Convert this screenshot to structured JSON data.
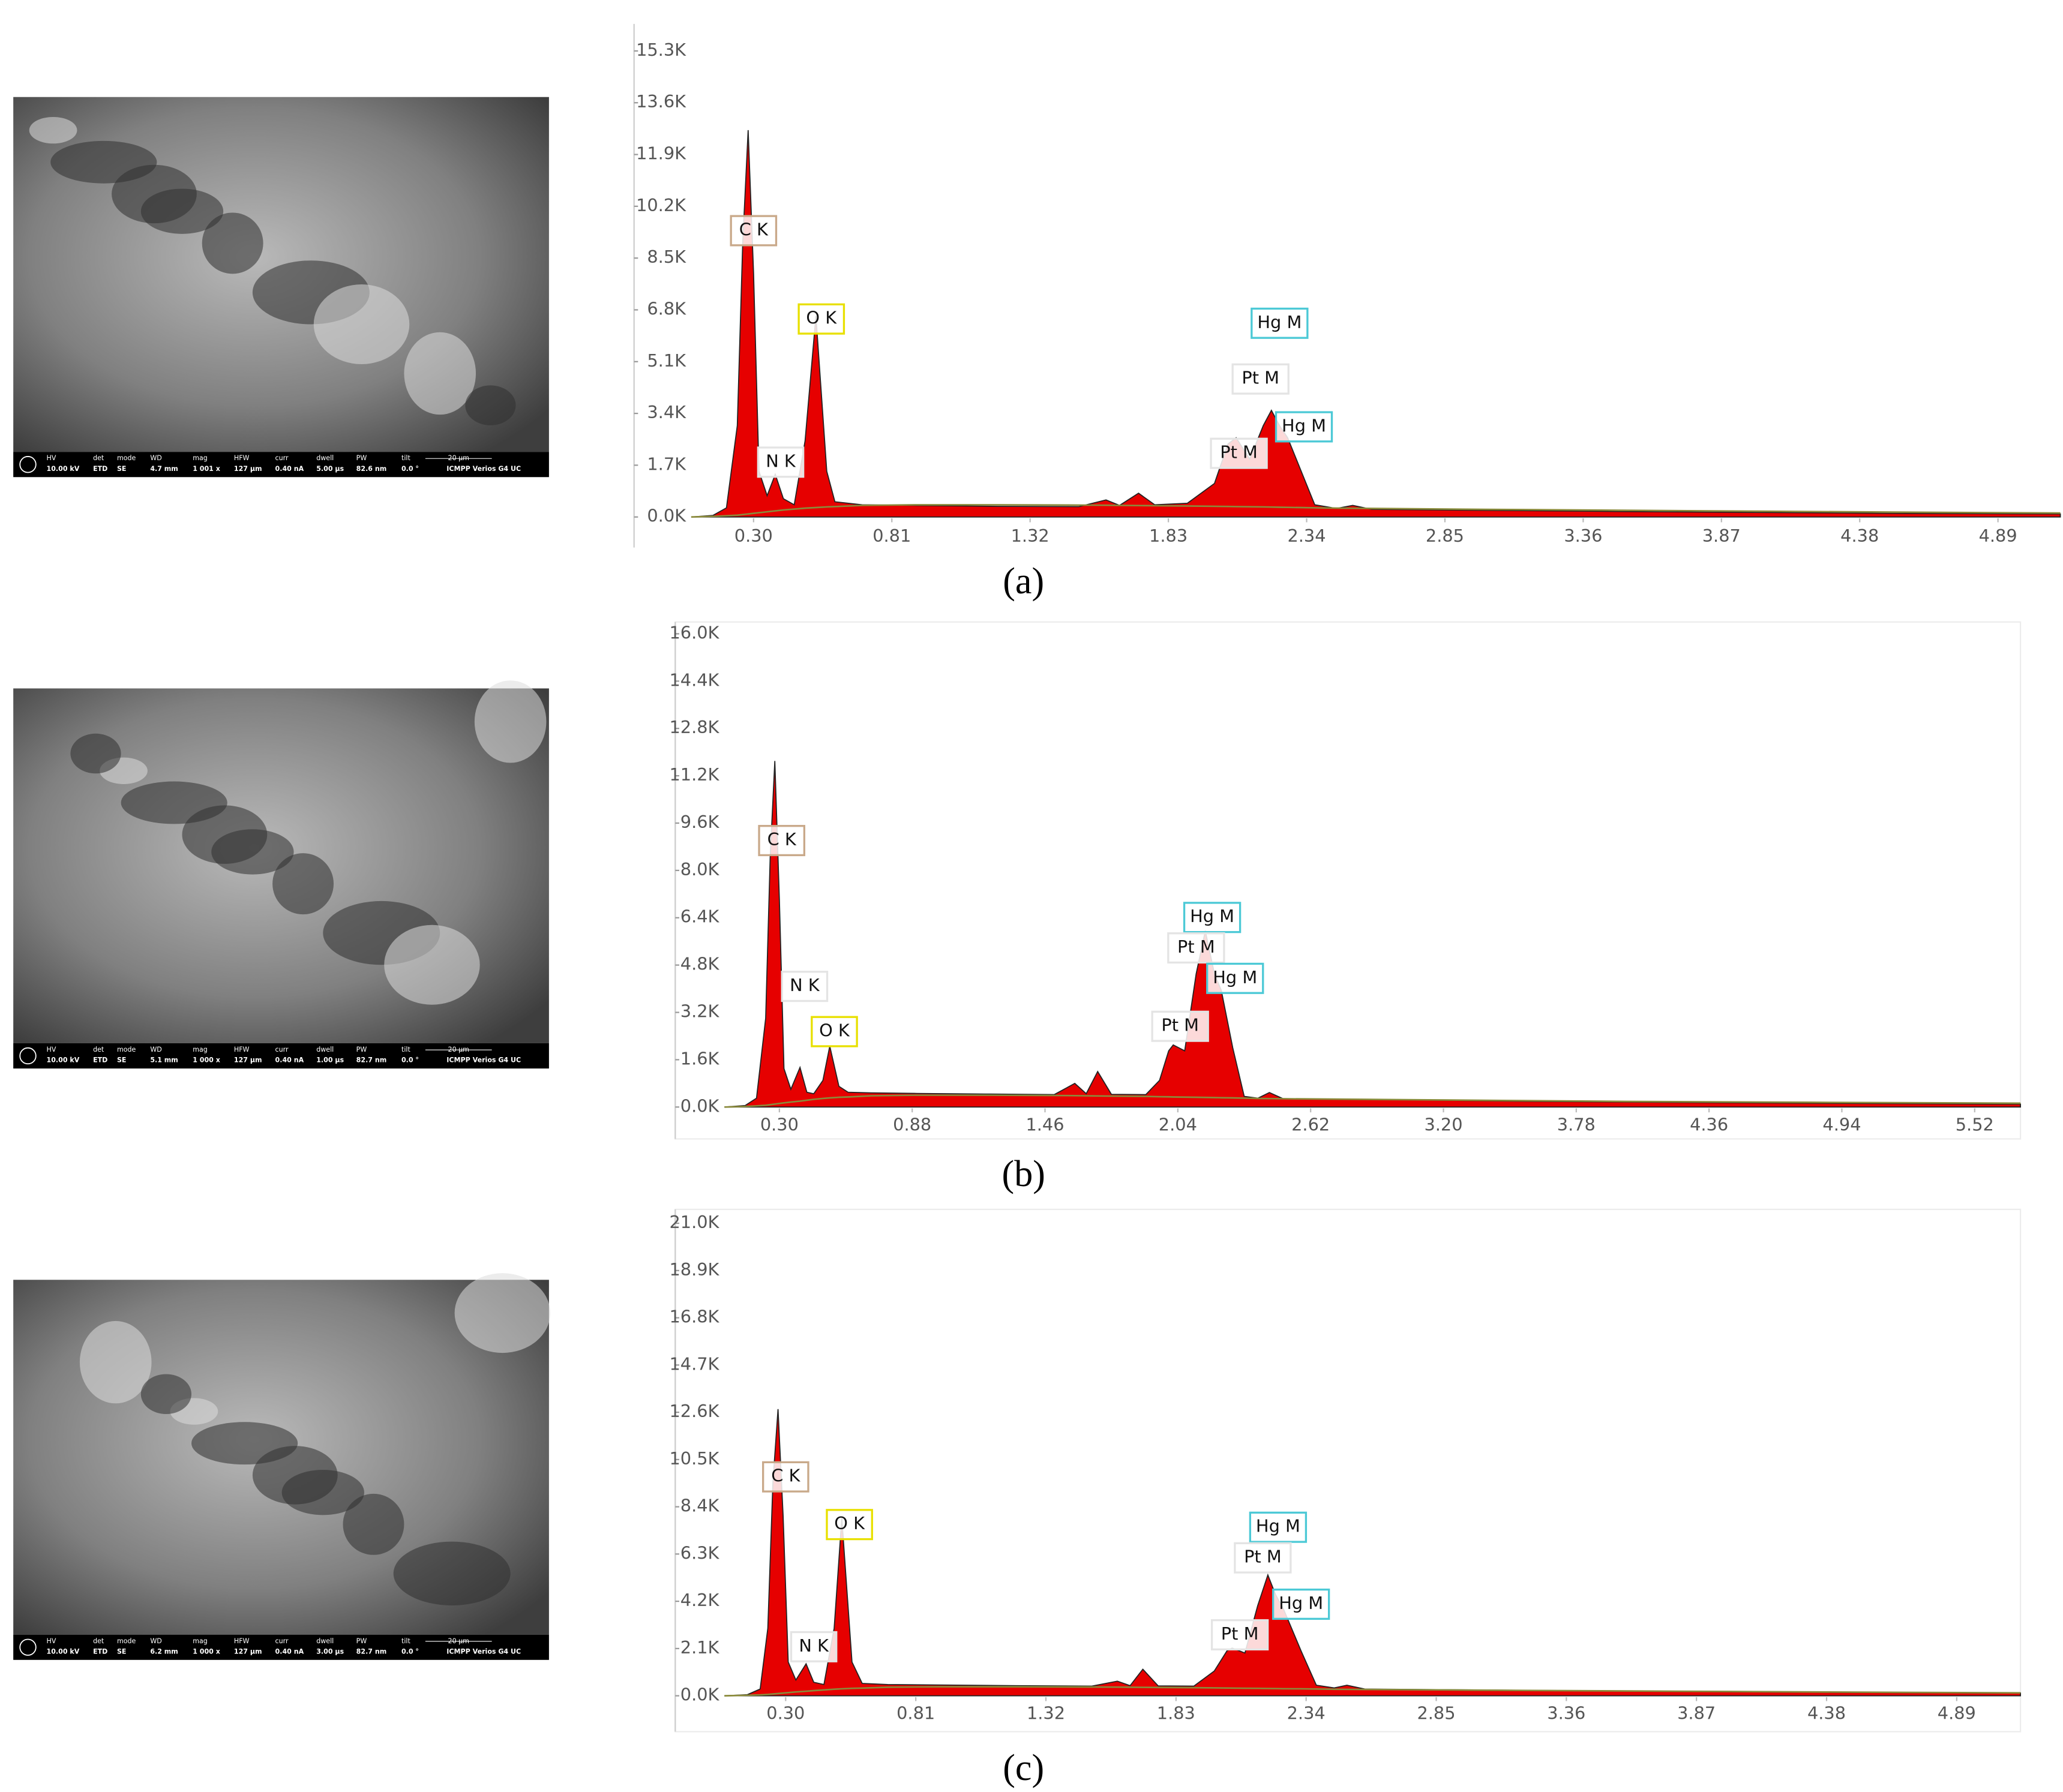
{
  "chart_data": [
    {
      "type": "area",
      "caption": "(a)",
      "x": [
        0.07,
        0.15,
        0.2,
        0.24,
        0.26,
        0.28,
        0.3,
        0.32,
        0.35,
        0.38,
        0.41,
        0.45,
        0.49,
        0.53,
        0.57,
        0.6,
        0.7,
        0.9,
        1.2,
        1.5,
        1.6,
        1.65,
        1.72,
        1.78,
        1.9,
        2.0,
        2.05,
        2.08,
        2.13,
        2.18,
        2.21,
        2.24,
        2.27,
        2.32,
        2.37,
        2.45,
        2.51,
        2.58,
        3.0,
        3.5,
        4.0,
        4.5,
        5.12
      ],
      "series": [
        {
          "color": "#e60000",
          "values": [
            0,
            50,
            300,
            3000,
            9000,
            12700,
            8000,
            1500,
            700,
            1400,
            600,
            400,
            2500,
            6600,
            1500,
            500,
            400,
            380,
            350,
            340,
            560,
            380,
            780,
            400,
            450,
            1100,
            2400,
            2600,
            1900,
            3000,
            3500,
            3000,
            2600,
            1500,
            400,
            280,
            380,
            250,
            220,
            180,
            150,
            120,
            100
          ]
        },
        {
          "color": "#8a8a3a",
          "values": [
            0,
            20,
            40,
            60,
            80,
            100,
            120,
            140,
            170,
            200,
            230,
            260,
            290,
            310,
            330,
            340,
            380,
            400,
            400,
            390,
            385,
            380,
            375,
            370,
            360,
            350,
            345,
            340,
            335,
            330,
            325,
            320,
            315,
            310,
            300,
            290,
            285,
            280,
            250,
            220,
            190,
            160,
            130
          ]
        }
      ],
      "xlim": [
        0.07,
        5.12
      ],
      "ylim": [
        0,
        16100
      ],
      "xticks": [
        {
          "value": 0.3,
          "label": "0.30"
        },
        0.81,
        1.32,
        1.83,
        2.34,
        2.85,
        3.36,
        3.87,
        4.38,
        4.89
      ],
      "yticks": [
        {
          "value": 0,
          "label": "0.0K"
        },
        {
          "value": 1700,
          "label": "1.7K"
        },
        {
          "value": 3400,
          "label": "3.4K"
        },
        {
          "value": 5100,
          "label": "5.1K"
        },
        {
          "value": 6800,
          "label": "6.8K"
        },
        {
          "value": 8500,
          "label": "8.5K"
        },
        {
          "value": 10200,
          "label": "10.2K"
        },
        {
          "value": 11900,
          "label": "11.9K"
        },
        {
          "value": 13600,
          "label": "13.6K"
        },
        {
          "value": 15300,
          "label": "15.3K"
        }
      ],
      "annotations": [
        {
          "text": "C K",
          "x": 0.3,
          "y": 9400,
          "box": "#c9a98a"
        },
        {
          "text": "O K",
          "x": 0.55,
          "y": 6500,
          "box": "#e8e000"
        },
        {
          "text": "N K",
          "x": 0.4,
          "y": 1800,
          "box": "#e4e4e4"
        },
        {
          "text": "Hg M",
          "x": 2.24,
          "y": 6360,
          "box": "#4cc9d6"
        },
        {
          "text": "Pt M",
          "x": 2.17,
          "y": 4530,
          "box": "#e4e4e4"
        },
        {
          "text": "Pt M",
          "x": 2.09,
          "y": 2090,
          "box": "#e4e4e4"
        },
        {
          "text": "Hg M",
          "x": 2.33,
          "y": 2960,
          "box": "#4cc9d6"
        }
      ]
    },
    {
      "type": "area",
      "caption": "(b)",
      "x": [
        0.06,
        0.15,
        0.2,
        0.24,
        0.26,
        0.28,
        0.3,
        0.32,
        0.35,
        0.39,
        0.42,
        0.45,
        0.49,
        0.52,
        0.56,
        0.6,
        0.7,
        0.9,
        1.2,
        1.5,
        1.59,
        1.64,
        1.69,
        1.75,
        1.9,
        1.96,
        2.0,
        2.02,
        2.07,
        2.12,
        2.16,
        2.2,
        2.23,
        2.28,
        2.33,
        2.39,
        2.44,
        2.5,
        3.0,
        3.5,
        4.0,
        4.8,
        5.72
      ],
      "series": [
        {
          "color": "#e60000",
          "values": [
            0,
            50,
            300,
            3000,
            8500,
            11700,
            7000,
            1300,
            600,
            1340,
            500,
            450,
            900,
            2060,
            700,
            500,
            480,
            460,
            440,
            420,
            800,
            450,
            1200,
            430,
            420,
            900,
            1900,
            2100,
            1900,
            4500,
            5960,
            4500,
            3940,
            2000,
            360,
            300,
            490,
            280,
            250,
            200,
            170,
            130,
            100
          ]
        },
        {
          "color": "#8a8a3a",
          "values": [
            0,
            20,
            40,
            60,
            80,
            100,
            120,
            140,
            170,
            200,
            230,
            260,
            290,
            310,
            330,
            340,
            380,
            400,
            400,
            390,
            385,
            380,
            375,
            370,
            360,
            350,
            345,
            340,
            335,
            330,
            325,
            320,
            315,
            310,
            300,
            290,
            285,
            280,
            250,
            220,
            190,
            160,
            130
          ]
        }
      ],
      "xlim": [
        0.06,
        5.72
      ],
      "ylim": [
        0,
        16400
      ],
      "xticks": [
        {
          "value": 0.3,
          "label": "0.30"
        },
        0.88,
        1.46,
        2.04,
        2.62,
        {
          "value": 3.2,
          "label": "3.20"
        },
        3.78,
        4.36,
        4.94,
        5.52
      ],
      "yticks": [
        {
          "value": 0,
          "label": "0.0K"
        },
        {
          "value": 1600,
          "label": "1.6K"
        },
        {
          "value": 3200,
          "label": "3.2K"
        },
        {
          "value": 4800,
          "label": "4.8K"
        },
        {
          "value": 6400,
          "label": "6.4K"
        },
        {
          "value": 8000,
          "label": "8.0K"
        },
        {
          "value": 9600,
          "label": "9.6K"
        },
        {
          "value": 11200,
          "label": "11.2K"
        },
        {
          "value": 12800,
          "label": "12.8K"
        },
        {
          "value": 14400,
          "label": "14.4K"
        },
        {
          "value": 16000,
          "label": "16.0K"
        }
      ],
      "annotations": [
        {
          "text": "C K",
          "x": 0.31,
          "y": 9010,
          "box": "#c9a98a"
        },
        {
          "text": "N K",
          "x": 0.41,
          "y": 4080,
          "box": "#e4e4e4"
        },
        {
          "text": "O K",
          "x": 0.54,
          "y": 2550,
          "box": "#e8e000"
        },
        {
          "text": "Hg M",
          "x": 2.19,
          "y": 6410,
          "box": "#4cc9d6"
        },
        {
          "text": "Pt M",
          "x": 2.12,
          "y": 5380,
          "box": "#e4e4e4"
        },
        {
          "text": "Hg M",
          "x": 2.29,
          "y": 4350,
          "box": "#4cc9d6"
        },
        {
          "text": "Pt M",
          "x": 2.05,
          "y": 2730,
          "box": "#e4e4e4"
        }
      ]
    },
    {
      "type": "area",
      "caption": "(c)",
      "x": [
        0.06,
        0.15,
        0.2,
        0.23,
        0.25,
        0.27,
        0.29,
        0.31,
        0.34,
        0.38,
        0.41,
        0.45,
        0.49,
        0.52,
        0.56,
        0.6,
        0.7,
        0.9,
        1.2,
        1.5,
        1.6,
        1.65,
        1.7,
        1.76,
        1.9,
        1.98,
        2.03,
        2.05,
        2.1,
        2.15,
        2.19,
        2.22,
        2.25,
        2.32,
        2.38,
        2.45,
        2.5,
        2.57,
        3.0,
        3.5,
        4.0,
        4.5,
        5.14
      ],
      "series": [
        {
          "color": "#e60000",
          "values": [
            0,
            50,
            300,
            3000,
            9500,
            12740,
            8000,
            1500,
            700,
            1420,
            600,
            500,
            3000,
            7900,
            1500,
            550,
            500,
            480,
            450,
            430,
            650,
            450,
            1180,
            440,
            430,
            1100,
            2000,
            2120,
            1900,
            4000,
            5370,
            4500,
            3890,
            2000,
            470,
            350,
            470,
            300,
            260,
            220,
            180,
            150,
            120
          ]
        },
        {
          "color": "#8a8a3a",
          "values": [
            0,
            20,
            40,
            60,
            80,
            100,
            120,
            140,
            170,
            200,
            230,
            260,
            290,
            310,
            330,
            340,
            380,
            400,
            400,
            390,
            385,
            380,
            375,
            370,
            360,
            350,
            345,
            340,
            335,
            330,
            325,
            320,
            315,
            310,
            300,
            290,
            285,
            280,
            250,
            220,
            190,
            160,
            130
          ]
        }
      ],
      "xlim": [
        0.06,
        5.14
      ],
      "ylim": [
        0,
        21500
      ],
      "xticks": [
        {
          "value": 0.3,
          "label": "0.30"
        },
        0.81,
        1.32,
        1.83,
        2.34,
        2.85,
        3.36,
        3.87,
        4.38,
        4.89
      ],
      "yticks": [
        {
          "value": 0,
          "label": "0.0K"
        },
        {
          "value": 2100,
          "label": "2.1K"
        },
        {
          "value": 4200,
          "label": "4.2K"
        },
        {
          "value": 6300,
          "label": "6.3K"
        },
        {
          "value": 8400,
          "label": "8.4K"
        },
        {
          "value": 10500,
          "label": "10.5K"
        },
        {
          "value": 12600,
          "label": "12.6K"
        },
        {
          "value": 14700,
          "label": "14.7K"
        },
        {
          "value": 16800,
          "label": "16.8K"
        },
        {
          "value": 18900,
          "label": "18.9K"
        },
        {
          "value": 21000,
          "label": "21.0K"
        }
      ],
      "annotations": [
        {
          "text": "C K",
          "x": 0.3,
          "y": 9730,
          "box": "#c9a98a"
        },
        {
          "text": "O K",
          "x": 0.55,
          "y": 7610,
          "box": "#e8e000"
        },
        {
          "text": "N K",
          "x": 0.41,
          "y": 2180,
          "box": "#e4e4e4"
        },
        {
          "text": "Hg M",
          "x": 2.23,
          "y": 7490,
          "box": "#4cc9d6"
        },
        {
          "text": "Pt M",
          "x": 2.17,
          "y": 6130,
          "box": "#e4e4e4"
        },
        {
          "text": "Pt M",
          "x": 2.08,
          "y": 2710,
          "box": "#e4e4e4"
        },
        {
          "text": "Hg M",
          "x": 2.32,
          "y": 4070,
          "box": "#4cc9d6"
        }
      ]
    }
  ],
  "sem_images": [
    {
      "labels": [
        "HV",
        "det",
        "mode",
        "WD",
        "mag",
        "HFW",
        "curr",
        "dwell",
        "PW",
        "tilt",
        "20 µm"
      ],
      "values": [
        "10.00 kV",
        "ETD",
        "SE",
        "4.7 mm",
        "1 001 x",
        "127 µm",
        "0.40 nA",
        "5.00 µs",
        "82.6 nm",
        "0.0 °",
        "ICMPP Verios G4 UC"
      ]
    },
    {
      "labels": [
        "HV",
        "det",
        "mode",
        "WD",
        "mag",
        "HFW",
        "curr",
        "dwell",
        "PW",
        "tilt",
        "20 µm"
      ],
      "values": [
        "10.00 kV",
        "ETD",
        "SE",
        "5.1 mm",
        "1 000 x",
        "127 µm",
        "0.40 nA",
        "1.00 µs",
        "82.7 nm",
        "0.0 °",
        "ICMPP Verios G4 UC"
      ]
    },
    {
      "labels": [
        "HV",
        "det",
        "mode",
        "WD",
        "mag",
        "HFW",
        "curr",
        "dwell",
        "PW",
        "tilt",
        "20 µm"
      ],
      "values": [
        "10.00 kV",
        "ETD",
        "SE",
        "6.2 mm",
        "1 000 x",
        "127 µm",
        "0.40 nA",
        "3.00 µs",
        "82.7 nm",
        "0.0 °",
        "ICMPP Verios G4 UC"
      ]
    }
  ]
}
